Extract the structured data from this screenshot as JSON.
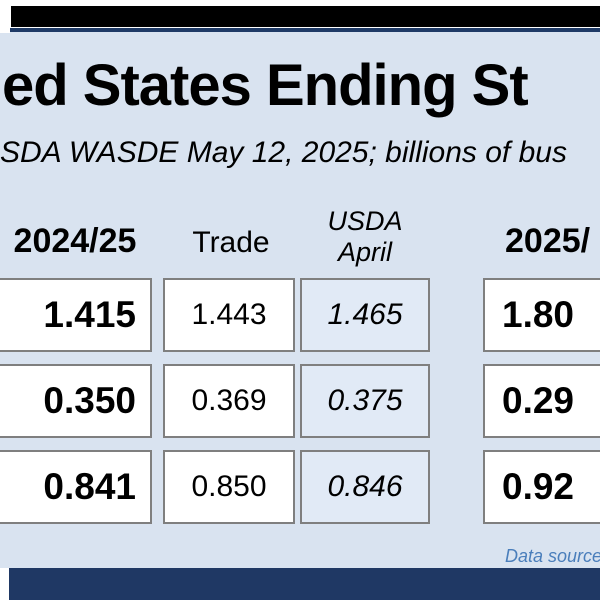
{
  "colors": {
    "top_bar": "#000000",
    "frame_border": "#1e3a66",
    "chart_bg": "#d9e3f0",
    "usda_col_bg": "#e1eaf6",
    "cell_border": "#7f7f7f",
    "bottom_bar": "#1f3864",
    "source_text": "#4a7ebb"
  },
  "header": {
    "title": "ed States Ending St",
    "subtitle": "SDA WASDE May 12, 2025; billions of bus"
  },
  "table": {
    "columns": {
      "col1": "2024/25",
      "col2": "Trade",
      "col3_line1": "USDA",
      "col3_line2": "April",
      "col4": "2025/"
    },
    "rows": [
      {
        "c1": "1.415",
        "c2": "1.443",
        "c3": "1.465",
        "c4": "1.80"
      },
      {
        "c1": "0.350",
        "c2": "0.369",
        "c3": "0.375",
        "c4": "0.29"
      },
      {
        "c1": "0.841",
        "c2": "0.850",
        "c3": "0.846",
        "c4": "0.92"
      }
    ]
  },
  "footer": {
    "source": "Data source"
  },
  "chart_data": {
    "type": "table",
    "title": "ed States Ending St",
    "subtitle": "SDA WASDE May 12, 2025; billions of bus",
    "columns": [
      "2024/25",
      "Trade",
      "USDA April",
      "2025/"
    ],
    "rows": [
      [
        "1.415",
        "1.443",
        "1.465",
        "1.80"
      ],
      [
        "0.350",
        "0.369",
        "0.375",
        "0.29"
      ],
      [
        "0.841",
        "0.850",
        "0.846",
        "0.92"
      ]
    ]
  }
}
